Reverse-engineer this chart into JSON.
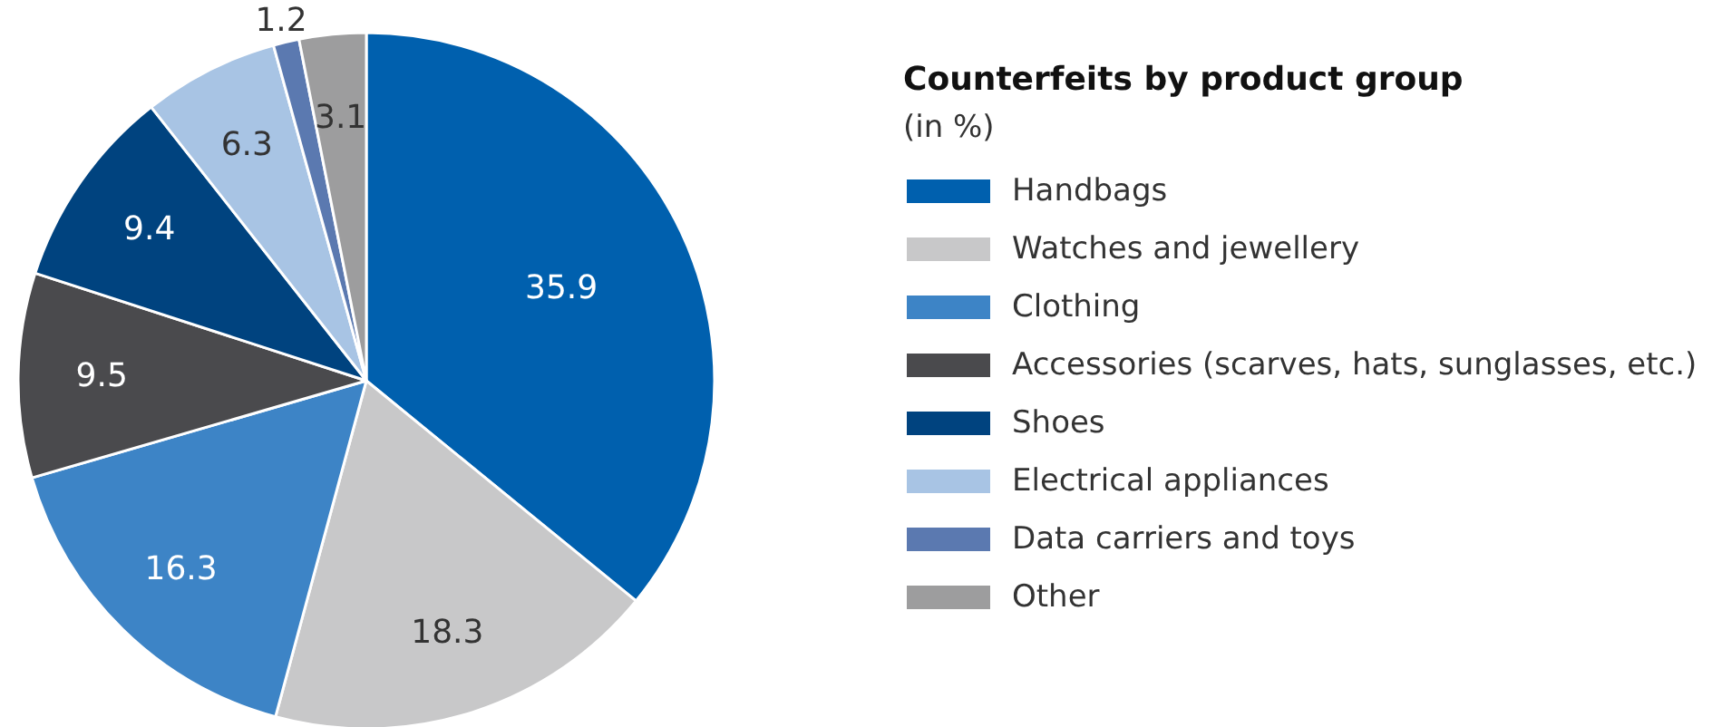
{
  "chart_data": {
    "type": "pie",
    "title": "Counterfeits by product group",
    "subtitle": "(in %)",
    "categories": [
      "Handbags",
      "Watches and jewellery",
      "Clothing",
      "Accessories (scarves, hats, sunglasses, etc.)",
      "Shoes",
      "Electrical appliances",
      "Data carriers and toys",
      "Other"
    ],
    "values": [
      35.9,
      18.3,
      16.3,
      9.5,
      9.4,
      6.3,
      1.2,
      3.1
    ],
    "colors": [
      "#0060ae",
      "#c8c8c9",
      "#3d84c6",
      "#4a4a4d",
      "#00437f",
      "#a8c4e4",
      "#5b79b0",
      "#9d9d9e"
    ],
    "data_labels": true,
    "legend": "right"
  }
}
